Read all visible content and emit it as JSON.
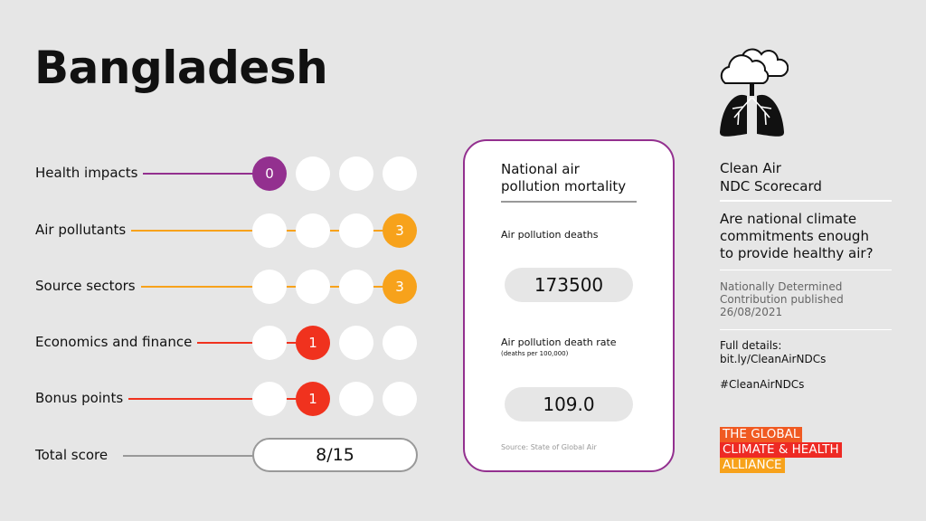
{
  "country": "Bangladesh",
  "colors": {
    "health": "#93308f",
    "orange": "#f7a21b",
    "red": "#f0321e",
    "background": "#e6e6e6"
  },
  "categories": [
    {
      "label": "Health impacts",
      "score": 0,
      "max_circles": 4,
      "filled_position": 1,
      "color": "#93308f"
    },
    {
      "label": "Air pollutants",
      "score": 3,
      "max_circles": 4,
      "filled_position": 4,
      "color": "#f7a21b"
    },
    {
      "label": "Source sectors",
      "score": 3,
      "max_circles": 4,
      "filled_position": 4,
      "color": "#f7a21b"
    },
    {
      "label": "Economics and finance",
      "score": 1,
      "max_circles": 4,
      "filled_position": 2,
      "color": "#f0321e"
    },
    {
      "label": "Bonus points",
      "score": 1,
      "max_circles": 4,
      "filled_position": 2,
      "color": "#f0321e"
    }
  ],
  "total": {
    "label": "Total score",
    "value": "8/15"
  },
  "card": {
    "title_line1": "National air",
    "title_line2": "pollution mortality",
    "deaths_label": "Air pollution deaths",
    "deaths_value": "173500",
    "rate_label": "Air pollution death rate",
    "rate_unit": "(deaths per 100,000)",
    "rate_value": "109.0",
    "source": "Source: State of Global Air"
  },
  "sidebar": {
    "icon": "cloud-lungs-icon",
    "title_line1": "Clean Air",
    "title_line2": "NDC Scorecard",
    "question_line1": "Are national climate",
    "question_line2": "commitments enough",
    "question_line3": "to provide healthy air?",
    "ndc_line1": "Nationally Determined",
    "ndc_line2": "Contribution published",
    "ndc_date": "26/08/2021",
    "details_label": "Full details:",
    "details_link": "bit.ly/CleanAirNDCs",
    "hashtag": "#CleanAirNDCs"
  },
  "logo": {
    "line1": "THE GLOBAL",
    "line2": "CLIMATE & HEALTH",
    "line3": "ALLIANCE",
    "colors": [
      "#f05a22",
      "#ee2a24",
      "#f7a21b"
    ]
  }
}
